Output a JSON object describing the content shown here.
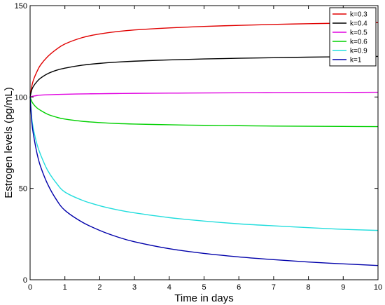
{
  "chart_data": {
    "type": "line",
    "title": "",
    "xlabel": "Time in days",
    "ylabel": "Estrogen levels (pg/mL)",
    "xlim": [
      0,
      10
    ],
    "ylim": [
      0,
      150
    ],
    "xticks": [
      0,
      1,
      2,
      3,
      4,
      5,
      6,
      7,
      8,
      9,
      10
    ],
    "yticks": [
      0,
      50,
      100,
      150
    ],
    "grid": false,
    "legend_position": "top-right",
    "x": [
      0,
      0.05,
      0.1,
      0.2,
      0.3,
      0.5,
      0.75,
      1,
      1.5,
      2,
      2.5,
      3,
      4,
      5,
      6,
      7,
      8,
      9,
      10
    ],
    "series": [
      {
        "name": "k=0.3",
        "color": "#e00000",
        "values": [
          100,
          106,
          109.5,
          114,
          117.5,
          122,
          126,
          129,
          132.5,
          134.5,
          135.8,
          136.7,
          137.8,
          138.6,
          139.2,
          139.7,
          140.1,
          140.4,
          140.7
        ]
      },
      {
        "name": "k=0.4",
        "color": "#000000",
        "values": [
          100,
          104,
          106,
          108.5,
          110.3,
          112.7,
          114.6,
          115.8,
          117.4,
          118.4,
          119.1,
          119.6,
          120.3,
          120.8,
          121.2,
          121.5,
          121.8,
          122,
          122.2
        ]
      },
      {
        "name": "k=0.5",
        "color": "#e000e0",
        "values": [
          100,
          100.3,
          100.5,
          100.8,
          101,
          101.2,
          101.4,
          101.5,
          101.7,
          101.8,
          101.9,
          102,
          102.1,
          102.2,
          102.3,
          102.4,
          102.5,
          102.5,
          102.6
        ]
      },
      {
        "name": "k=0.6",
        "color": "#00d000",
        "values": [
          100,
          97.5,
          96,
          94,
          92.7,
          90.6,
          89,
          87.9,
          86.7,
          86,
          85.5,
          85.2,
          84.8,
          84.5,
          84.3,
          84.1,
          84,
          83.9,
          83.8
        ]
      },
      {
        "name": "k=0.9",
        "color": "#22dddd",
        "values": [
          100,
          88,
          82,
          74,
          68.5,
          60,
          53,
          48,
          43.5,
          40.5,
          38.3,
          36.6,
          34,
          32.1,
          30.6,
          29.5,
          28.5,
          27.6,
          27
        ]
      },
      {
        "name": "k=1",
        "color": "#0000aa",
        "values": [
          100,
          86,
          79,
          69,
          62,
          52.5,
          44,
          38,
          31.5,
          27,
          23.5,
          20.8,
          17,
          14.4,
          12.5,
          11,
          9.7,
          8.7,
          7.8
        ]
      }
    ]
  }
}
